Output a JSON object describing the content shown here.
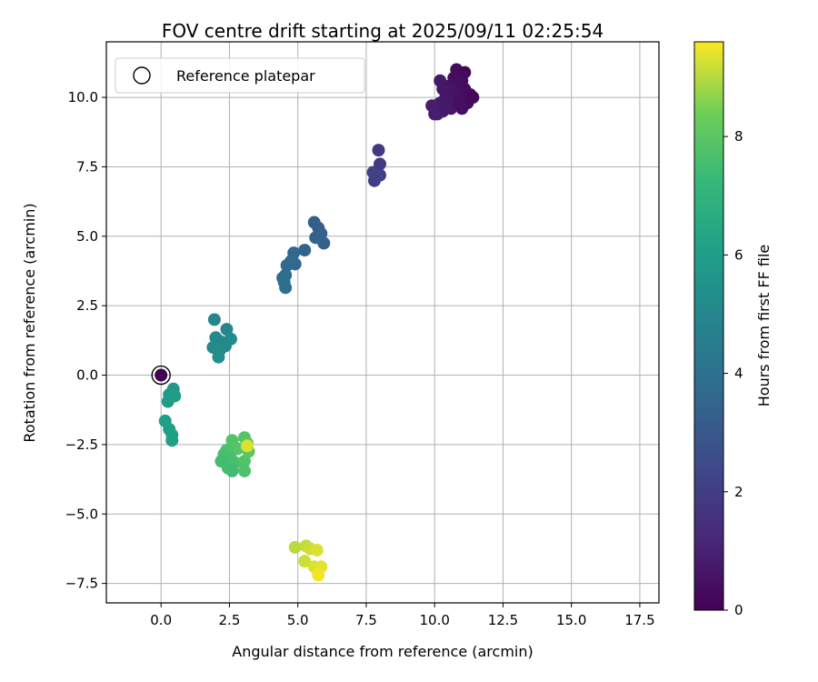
{
  "chart_data": {
    "type": "scatter",
    "title": "FOV centre drift starting at 2025/09/11 02:25:54",
    "xlabel": "Angular distance from reference (arcmin)",
    "ylabel": "Rotation from reference (arcmin)",
    "xlim": [
      -2.0,
      18.2
    ],
    "ylim": [
      -8.2,
      12.0
    ],
    "xticks": [
      0.0,
      2.5,
      5.0,
      7.5,
      10.0,
      12.5,
      15.0,
      17.5
    ],
    "xtick_labels": [
      "0.0",
      "2.5",
      "5.0",
      "7.5",
      "10.0",
      "12.5",
      "15.0",
      "17.5"
    ],
    "yticks": [
      -7.5,
      -5.0,
      -2.5,
      0.0,
      2.5,
      5.0,
      7.5,
      10.0
    ],
    "ytick_labels": [
      "−7.5",
      "−5.0",
      "−2.5",
      "0.0",
      "2.5",
      "5.0",
      "7.5",
      "10.0"
    ],
    "grid": true,
    "legend": {
      "placement": "top-left",
      "entries": [
        "Reference platepar"
      ]
    },
    "colorbar": {
      "label": "Hours from first FF file",
      "range": [
        0,
        9.6
      ],
      "ticks": [
        0,
        2,
        4,
        6,
        8
      ],
      "tick_labels": [
        "0",
        "2",
        "4",
        "6",
        "8"
      ],
      "colormap": "viridis"
    },
    "reference_point": {
      "x": 0.0,
      "y": 0.0,
      "t": 0.0
    },
    "points": [
      {
        "x": 10.0,
        "y": 9.4,
        "t": 0.8
      },
      {
        "x": 10.1,
        "y": 9.6,
        "t": 0.8
      },
      {
        "x": 10.2,
        "y": 9.8,
        "t": 0.75
      },
      {
        "x": 10.3,
        "y": 9.5,
        "t": 0.75
      },
      {
        "x": 10.4,
        "y": 10.0,
        "t": 0.7
      },
      {
        "x": 10.5,
        "y": 9.7,
        "t": 0.7
      },
      {
        "x": 10.6,
        "y": 10.2,
        "t": 0.6
      },
      {
        "x": 10.7,
        "y": 9.9,
        "t": 0.6
      },
      {
        "x": 10.8,
        "y": 10.5,
        "t": 0.5
      },
      {
        "x": 10.9,
        "y": 10.1,
        "t": 0.5
      },
      {
        "x": 11.0,
        "y": 9.6,
        "t": 0.4
      },
      {
        "x": 11.1,
        "y": 10.3,
        "t": 0.4
      },
      {
        "x": 11.2,
        "y": 9.8,
        "t": 0.3
      },
      {
        "x": 11.3,
        "y": 10.1,
        "t": 0.3
      },
      {
        "x": 10.2,
        "y": 10.6,
        "t": 0.7
      },
      {
        "x": 10.8,
        "y": 11.0,
        "t": 0.3
      },
      {
        "x": 11.1,
        "y": 10.9,
        "t": 0.2
      },
      {
        "x": 10.5,
        "y": 10.4,
        "t": 0.6
      },
      {
        "x": 9.9,
        "y": 9.7,
        "t": 0.85
      },
      {
        "x": 10.1,
        "y": 9.4,
        "t": 0.9
      },
      {
        "x": 10.6,
        "y": 9.6,
        "t": 0.55
      },
      {
        "x": 11.0,
        "y": 10.6,
        "t": 0.35
      },
      {
        "x": 10.3,
        "y": 10.3,
        "t": 0.65
      },
      {
        "x": 10.9,
        "y": 9.8,
        "t": 0.45
      },
      {
        "x": 11.4,
        "y": 10.0,
        "t": 0.25
      },
      {
        "x": 10.7,
        "y": 10.7,
        "t": 0.4
      },
      {
        "x": 10.4,
        "y": 9.6,
        "t": 0.7
      },
      {
        "x": 7.8,
        "y": 7.0,
        "t": 2.0
      },
      {
        "x": 7.9,
        "y": 7.3,
        "t": 2.0
      },
      {
        "x": 8.0,
        "y": 7.6,
        "t": 1.9
      },
      {
        "x": 7.95,
        "y": 8.1,
        "t": 1.8
      },
      {
        "x": 8.0,
        "y": 7.2,
        "t": 2.1
      },
      {
        "x": 7.75,
        "y": 7.3,
        "t": 2.1
      },
      {
        "x": 5.6,
        "y": 5.5,
        "t": 3.2
      },
      {
        "x": 5.75,
        "y": 5.3,
        "t": 3.2
      },
      {
        "x": 5.85,
        "y": 5.1,
        "t": 3.3
      },
      {
        "x": 5.95,
        "y": 4.75,
        "t": 3.3
      },
      {
        "x": 5.65,
        "y": 4.95,
        "t": 3.4
      },
      {
        "x": 5.25,
        "y": 4.5,
        "t": 3.5
      },
      {
        "x": 4.85,
        "y": 4.4,
        "t": 3.6
      },
      {
        "x": 4.9,
        "y": 4.0,
        "t": 3.6
      },
      {
        "x": 4.6,
        "y": 3.95,
        "t": 3.7
      },
      {
        "x": 4.75,
        "y": 4.1,
        "t": 3.7
      },
      {
        "x": 4.45,
        "y": 3.5,
        "t": 3.8
      },
      {
        "x": 4.55,
        "y": 3.6,
        "t": 3.8
      },
      {
        "x": 4.55,
        "y": 3.15,
        "t": 3.9
      },
      {
        "x": 4.5,
        "y": 3.35,
        "t": 3.9
      },
      {
        "x": 1.95,
        "y": 2.0,
        "t": 5.0
      },
      {
        "x": 2.4,
        "y": 1.65,
        "t": 5.0
      },
      {
        "x": 2.0,
        "y": 1.35,
        "t": 5.1
      },
      {
        "x": 2.2,
        "y": 1.2,
        "t": 5.1
      },
      {
        "x": 2.55,
        "y": 1.3,
        "t": 5.2
      },
      {
        "x": 1.9,
        "y": 1.0,
        "t": 5.2
      },
      {
        "x": 2.15,
        "y": 0.9,
        "t": 5.3
      },
      {
        "x": 2.1,
        "y": 0.65,
        "t": 5.3
      },
      {
        "x": 2.35,
        "y": 1.05,
        "t": 5.1
      },
      {
        "x": 0.45,
        "y": -0.5,
        "t": 5.8
      },
      {
        "x": 0.3,
        "y": -0.7,
        "t": 5.8
      },
      {
        "x": 0.5,
        "y": -0.75,
        "t": 5.9
      },
      {
        "x": 0.25,
        "y": -0.95,
        "t": 5.9
      },
      {
        "x": 0.15,
        "y": -1.65,
        "t": 6.0
      },
      {
        "x": 0.3,
        "y": -1.95,
        "t": 6.0
      },
      {
        "x": 0.4,
        "y": -2.15,
        "t": 6.1
      },
      {
        "x": 0.4,
        "y": -2.35,
        "t": 6.1
      },
      {
        "x": 2.6,
        "y": -2.35,
        "t": 7.8
      },
      {
        "x": 3.05,
        "y": -2.25,
        "t": 7.9
      },
      {
        "x": 3.15,
        "y": -2.45,
        "t": 8.0
      },
      {
        "x": 3.2,
        "y": -2.75,
        "t": 8.0
      },
      {
        "x": 2.8,
        "y": -2.65,
        "t": 7.9
      },
      {
        "x": 2.4,
        "y": -2.7,
        "t": 7.7
      },
      {
        "x": 2.3,
        "y": -2.85,
        "t": 7.6
      },
      {
        "x": 2.55,
        "y": -3.0,
        "t": 7.6
      },
      {
        "x": 2.2,
        "y": -3.1,
        "t": 7.5
      },
      {
        "x": 2.7,
        "y": -3.15,
        "t": 7.6
      },
      {
        "x": 3.05,
        "y": -3.1,
        "t": 7.8
      },
      {
        "x": 2.45,
        "y": -3.35,
        "t": 7.5
      },
      {
        "x": 2.6,
        "y": -3.45,
        "t": 7.4
      },
      {
        "x": 3.05,
        "y": -3.45,
        "t": 7.7
      },
      {
        "x": 3.15,
        "y": -2.55,
        "t": 9.3
      },
      {
        "x": 4.9,
        "y": -6.2,
        "t": 9.0
      },
      {
        "x": 5.3,
        "y": -6.15,
        "t": 9.1
      },
      {
        "x": 5.45,
        "y": -6.25,
        "t": 9.2
      },
      {
        "x": 5.7,
        "y": -6.3,
        "t": 9.3
      },
      {
        "x": 5.25,
        "y": -6.7,
        "t": 9.2
      },
      {
        "x": 5.6,
        "y": -6.9,
        "t": 9.3
      },
      {
        "x": 5.85,
        "y": -6.9,
        "t": 9.4
      },
      {
        "x": 5.75,
        "y": -7.2,
        "t": 9.5
      }
    ]
  }
}
